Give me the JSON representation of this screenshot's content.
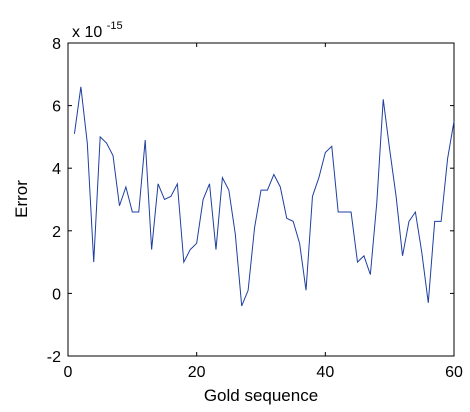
{
  "chart_data": {
    "type": "line",
    "title": "",
    "xlabel": "Gold sequence",
    "ylabel": "Error",
    "y_scale_label": "x 10",
    "y_scale_exponent": "-15",
    "xlim": [
      0,
      60
    ],
    "ylim": [
      -2,
      8
    ],
    "xticks": [
      "0",
      "20",
      "40",
      "60"
    ],
    "yticks": [
      "-2",
      "0",
      "2",
      "4",
      "6",
      "8"
    ],
    "grid": false,
    "line_color": "#1f3fa0",
    "series": [
      {
        "x": [
          1,
          2,
          3,
          4,
          5,
          6,
          7,
          8,
          9,
          10,
          11,
          12,
          13,
          14,
          15,
          16,
          17,
          18,
          19,
          20,
          21,
          22,
          23,
          24,
          25,
          26,
          27,
          28,
          29,
          30,
          31,
          32,
          33,
          34,
          35,
          36,
          37,
          38,
          39,
          40,
          41,
          42,
          43,
          44,
          45,
          46,
          47,
          48,
          49,
          50,
          51,
          52,
          53,
          54,
          55,
          56,
          57,
          58,
          59,
          60
        ],
        "values": [
          5.1,
          6.6,
          4.8,
          1.0,
          5.0,
          4.8,
          4.4,
          2.8,
          3.4,
          2.6,
          2.6,
          4.9,
          1.4,
          3.5,
          3.0,
          3.1,
          3.5,
          1.0,
          1.4,
          1.6,
          3.0,
          3.5,
          1.4,
          3.7,
          3.3,
          1.9,
          -0.4,
          0.1,
          2.1,
          3.3,
          3.3,
          3.8,
          3.4,
          2.4,
          2.3,
          1.6,
          0.1,
          3.1,
          3.7,
          4.5,
          4.7,
          2.6,
          2.6,
          2.6,
          1.0,
          1.2,
          0.6,
          2.9,
          6.2,
          4.6,
          3.1,
          1.2,
          2.3,
          2.6,
          1.3,
          -0.3,
          2.3,
          2.3,
          4.3,
          5.5
        ]
      }
    ]
  }
}
